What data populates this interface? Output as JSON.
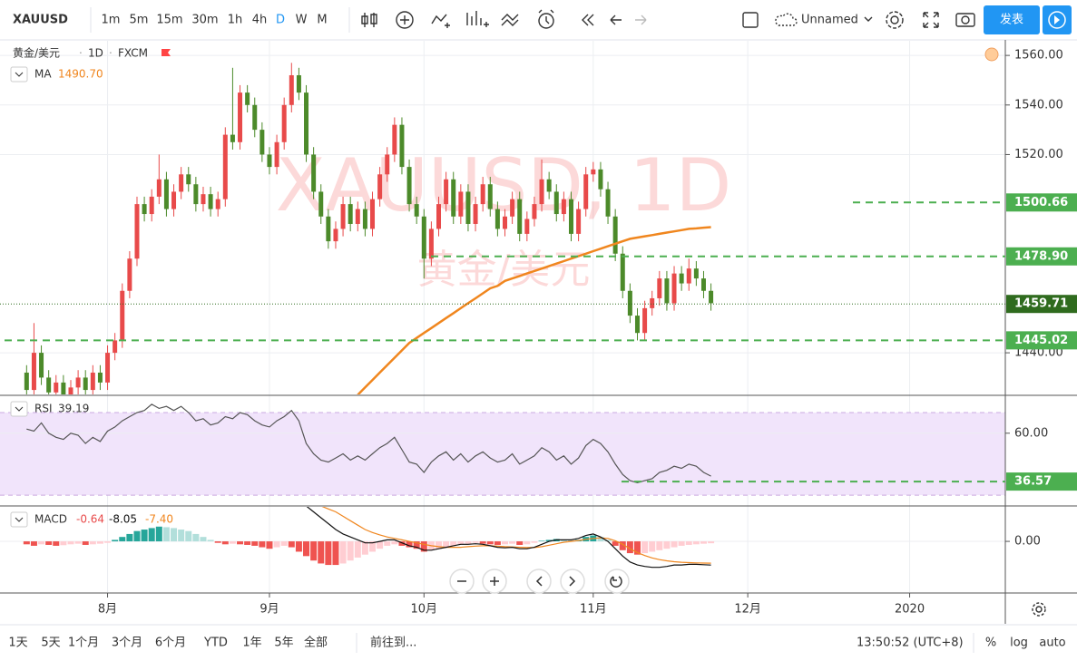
{
  "toolbar": {
    "symbol": "XAUUSD",
    "intervals": [
      "1m",
      "5m",
      "15m",
      "30m",
      "1h",
      "4h",
      "D",
      "W",
      "M"
    ],
    "active": "D",
    "layout_name": "Unnamed",
    "publish": "发表"
  },
  "chart_data": [
    {
      "type": "candlestick",
      "title": "黄金/美元",
      "interval": "1D",
      "source": "FXCM",
      "watermark": "XAUUSD, 1D",
      "watermark_sub": "黄金/美元",
      "up_color": "#e84a4a",
      "down_color": "#4c8a2a",
      "open": [
        1432,
        1425,
        1440,
        1430,
        1424,
        1428,
        1422,
        1426,
        1430,
        1425,
        1432,
        1428,
        1440,
        1445,
        1465,
        1478,
        1500,
        1496,
        1503,
        1510,
        1498,
        1505,
        1512,
        1508,
        1500,
        1504,
        1498,
        1502,
        1528,
        1525,
        1545,
        1540,
        1530,
        1520,
        1515,
        1525,
        1540,
        1552,
        1545,
        1520,
        1505,
        1495,
        1485,
        1490,
        1500,
        1492,
        1498,
        1490,
        1502,
        1512,
        1520,
        1532,
        1515,
        1500,
        1495,
        1478,
        1490,
        1500,
        1510,
        1495,
        1505,
        1492,
        1500,
        1508,
        1498,
        1490,
        1495,
        1502,
        1488,
        1494,
        1500,
        1510,
        1505,
        1496,
        1502,
        1488,
        1498,
        1512,
        1514,
        1506,
        1495,
        1480,
        1465,
        1455,
        1448,
        1458,
        1462,
        1470,
        1460,
        1472,
        1468,
        1474,
        1470,
        1465
      ],
      "high": [
        1435,
        1452,
        1443,
        1433,
        1431,
        1431,
        1429,
        1433,
        1433,
        1435,
        1435,
        1443,
        1448,
        1468,
        1481,
        1503,
        1503,
        1506,
        1520,
        1513,
        1508,
        1515,
        1515,
        1511,
        1507,
        1507,
        1505,
        1531,
        1555,
        1548,
        1548,
        1543,
        1533,
        1523,
        1528,
        1543,
        1557,
        1555,
        1548,
        1523,
        1508,
        1498,
        1493,
        1503,
        1503,
        1501,
        1501,
        1505,
        1515,
        1523,
        1535,
        1535,
        1518,
        1503,
        1498,
        1493,
        1503,
        1513,
        1513,
        1508,
        1508,
        1503,
        1511,
        1511,
        1501,
        1498,
        1505,
        1505,
        1497,
        1503,
        1518,
        1513,
        1508,
        1505,
        1505,
        1501,
        1515,
        1517,
        1517,
        1509,
        1498,
        1483,
        1468,
        1458,
        1461,
        1465,
        1473,
        1473,
        1475,
        1475,
        1478,
        1477,
        1473,
        1468
      ],
      "low": [
        1422,
        1422,
        1427,
        1421,
        1421,
        1419,
        1419,
        1423,
        1422,
        1422,
        1425,
        1425,
        1437,
        1442,
        1462,
        1475,
        1493,
        1493,
        1500,
        1495,
        1495,
        1502,
        1505,
        1497,
        1497,
        1495,
        1495,
        1499,
        1522,
        1522,
        1537,
        1527,
        1517,
        1512,
        1512,
        1522,
        1537,
        1542,
        1517,
        1502,
        1492,
        1482,
        1482,
        1487,
        1489,
        1489,
        1487,
        1487,
        1499,
        1509,
        1517,
        1512,
        1497,
        1492,
        1470,
        1475,
        1487,
        1497,
        1492,
        1492,
        1489,
        1489,
        1497,
        1495,
        1487,
        1487,
        1492,
        1485,
        1485,
        1491,
        1497,
        1502,
        1493,
        1493,
        1485,
        1485,
        1495,
        1509,
        1503,
        1492,
        1477,
        1462,
        1452,
        1445,
        1445,
        1455,
        1459,
        1457,
        1457,
        1465,
        1465,
        1467,
        1462,
        1457
      ],
      "close": [
        1425,
        1440,
        1430,
        1424,
        1428,
        1422,
        1426,
        1430,
        1425,
        1432,
        1428,
        1440,
        1445,
        1465,
        1478,
        1500,
        1496,
        1503,
        1510,
        1498,
        1505,
        1512,
        1508,
        1500,
        1504,
        1498,
        1502,
        1528,
        1525,
        1545,
        1540,
        1530,
        1520,
        1515,
        1525,
        1540,
        1552,
        1545,
        1520,
        1505,
        1495,
        1485,
        1490,
        1500,
        1492,
        1498,
        1490,
        1502,
        1512,
        1520,
        1532,
        1515,
        1500,
        1495,
        1478,
        1490,
        1500,
        1510,
        1495,
        1505,
        1492,
        1500,
        1508,
        1498,
        1490,
        1495,
        1502,
        1488,
        1494,
        1500,
        1510,
        1505,
        1496,
        1502,
        1488,
        1498,
        1512,
        1514,
        1506,
        1495,
        1480,
        1465,
        1455,
        1448,
        1458,
        1462,
        1470,
        1460,
        1472,
        1468,
        1474,
        1470,
        1465,
        1460
      ],
      "series": [
        {
          "name": "MA",
          "color": "#f0861e",
          "value_label": "1490.70",
          "values": [
            null,
            null,
            null,
            null,
            null,
            null,
            null,
            null,
            null,
            null,
            null,
            null,
            null,
            null,
            null,
            null,
            null,
            null,
            null,
            null,
            null,
            null,
            null,
            null,
            null,
            null,
            null,
            null,
            null,
            null,
            null,
            null,
            null,
            null,
            null,
            null,
            null,
            null,
            null,
            null,
            null,
            null,
            null,
            null,
            null,
            1423,
            1426,
            1429,
            1432,
            1435,
            1438,
            1441,
            1444,
            1446,
            1448,
            1450,
            1452,
            1454,
            1456,
            1458,
            1460,
            1462,
            1464,
            1466,
            1467,
            1469,
            1470,
            1471,
            1472,
            1473,
            1474,
            1475,
            1476,
            1477,
            1478,
            1479,
            1480,
            1481,
            1482,
            1483,
            1484,
            1485,
            1486,
            1486.5,
            1487,
            1487.5,
            1488,
            1488.5,
            1489,
            1489.5,
            1490,
            1490.2,
            1490.5,
            1490.7
          ]
        }
      ],
      "ylim": [
        1423.2,
        1565.9
      ],
      "yticks": [
        {
          "value": 1440,
          "label": "1440.00"
        },
        {
          "value": 1520,
          "label": "1520.00"
        },
        {
          "value": 1540,
          "label": "1540.00"
        },
        {
          "value": 1560,
          "label": "1560.00"
        }
      ],
      "xlim": [
        -3,
        133
      ],
      "xticks": [
        {
          "value": 11,
          "label": "8月"
        },
        {
          "value": 33,
          "label": "9月"
        },
        {
          "value": 54,
          "label": "10月"
        },
        {
          "value": 77,
          "label": "11月"
        },
        {
          "value": 98,
          "label": "12月"
        },
        {
          "value": 120,
          "label": "2020"
        }
      ],
      "levels": [
        {
          "value": 1500.66,
          "label": "1500.66"
        },
        {
          "value": 1478.9,
          "label": "1478.90"
        },
        {
          "value": 1445.02,
          "label": "1445.02"
        }
      ],
      "last": {
        "value": 1459.71,
        "label": "1459.71"
      },
      "level_color": "#4caf50",
      "last_color": "#2f6b1e"
    },
    {
      "type": "line",
      "title": "RSI",
      "value_label": "39.19",
      "series": [
        {
          "color": "#555555",
          "values": [
            62,
            61,
            65,
            60,
            58,
            57,
            60,
            59,
            55,
            58,
            56,
            61,
            63,
            66,
            68,
            70,
            71,
            74,
            72,
            73,
            71,
            73,
            70,
            66,
            67,
            64,
            65,
            68,
            67,
            70,
            69,
            66,
            64,
            63,
            66,
            68,
            71,
            66,
            55,
            50,
            47,
            46,
            48,
            50,
            47,
            49,
            47,
            50,
            53,
            55,
            58,
            52,
            46,
            45,
            41,
            46,
            49,
            51,
            47,
            50,
            46,
            49,
            51,
            48,
            46,
            47,
            50,
            45,
            47,
            49,
            53,
            51,
            47,
            49,
            45,
            48,
            54,
            57,
            55,
            51,
            45,
            40,
            37,
            36,
            37,
            38,
            41,
            42,
            44,
            43,
            45,
            44,
            41,
            39.19
          ]
        }
      ],
      "ylim": [
        25.2,
        77.9
      ],
      "yticks": [
        {
          "value": 60,
          "label": "60.00"
        }
      ],
      "band": [
        30,
        70
      ],
      "band_color": "#f1e4fb",
      "levels": [
        {
          "value": 36.57,
          "label": "36.57"
        }
      ],
      "level_color": "#4caf50"
    },
    {
      "type": "macd",
      "title": "MACD",
      "histogram": {
        "value_label": "-0.64",
        "colors": [
          "#26a69a",
          "#b2dfdb",
          "#ef5350",
          "#ffcdd2"
        ],
        "values": [
          -1,
          -1.5,
          -1,
          -1.2,
          -1.5,
          -1.3,
          -1,
          -0.8,
          -1.2,
          -1,
          -0.8,
          -0.5,
          0.5,
          1.5,
          2.5,
          3.5,
          4,
          4.5,
          5,
          4.8,
          4.5,
          4,
          3.5,
          2.5,
          1.5,
          0.5,
          -0.5,
          -1,
          -0.8,
          -1,
          -1.2,
          -1.5,
          -2,
          -2.5,
          -2,
          -1.5,
          -2,
          -3.5,
          -5,
          -6.5,
          -7.5,
          -8,
          -8,
          -7.5,
          -6.5,
          -5.5,
          -4.5,
          -3.5,
          -2.5,
          -1.5,
          -1,
          -1.5,
          -2,
          -2.5,
          -3.5,
          -3,
          -2.5,
          -2,
          -1.5,
          -1,
          -0.8,
          -0.5,
          -0.8,
          -1,
          -1.2,
          -1,
          -0.8,
          -1.2,
          -1,
          -0.5,
          0.2,
          0.5,
          0.8,
          0.5,
          0.3,
          0.5,
          1.5,
          2,
          1.5,
          0.5,
          -1.5,
          -3,
          -4,
          -4.5,
          -4,
          -3.5,
          -3,
          -2.5,
          -2,
          -1.5,
          -1.2,
          -1,
          -0.8,
          -0.64
        ]
      },
      "macd": {
        "value_label": "-8.05",
        "color": "#111111",
        "values": [
          null,
          null,
          null,
          null,
          null,
          null,
          null,
          null,
          null,
          null,
          null,
          null,
          null,
          null,
          null,
          null,
          null,
          null,
          null,
          null,
          null,
          null,
          null,
          null,
          null,
          null,
          null,
          null,
          null,
          null,
          null,
          null,
          null,
          null,
          null,
          null,
          null,
          null,
          12,
          10,
          8,
          6,
          4,
          2.5,
          1.5,
          0.5,
          -0.5,
          -0.5,
          0,
          0.5,
          0.5,
          -0.5,
          -1.5,
          -2,
          -3,
          -3,
          -2.5,
          -2,
          -1.5,
          -1,
          -1,
          -0.8,
          -1,
          -1.5,
          -2,
          -2.2,
          -2,
          -2.5,
          -2.5,
          -2,
          -1,
          0,
          0.5,
          0.5,
          0.5,
          1,
          2,
          2.5,
          1.5,
          0,
          -2.5,
          -5,
          -7,
          -8,
          -8.5,
          -8.8,
          -8.8,
          -8.5,
          -8,
          -8,
          -7.8,
          -7.8,
          -7.9,
          -8.05
        ]
      },
      "signal": {
        "value_label": "-7.40",
        "color": "#f0861e",
        "values": [
          null,
          null,
          null,
          null,
          null,
          null,
          null,
          null,
          null,
          null,
          null,
          null,
          null,
          null,
          null,
          null,
          null,
          null,
          null,
          null,
          null,
          null,
          null,
          null,
          null,
          null,
          null,
          null,
          null,
          null,
          null,
          null,
          null,
          null,
          null,
          null,
          null,
          null,
          13,
          12.5,
          12,
          11,
          10,
          8.5,
          7,
          5.5,
          4,
          3,
          2.2,
          1.5,
          1,
          0.5,
          0,
          -0.5,
          -1,
          -1.5,
          -1.8,
          -2,
          -2,
          -2,
          -1.8,
          -1.6,
          -1.5,
          -1.5,
          -1.6,
          -1.8,
          -1.9,
          -2,
          -2.1,
          -2.1,
          -1.8,
          -1.3,
          -0.8,
          -0.3,
          0,
          0.3,
          0.7,
          1,
          1.2,
          1,
          0.2,
          -1,
          -2.5,
          -3.8,
          -4.8,
          -5.6,
          -6.2,
          -6.6,
          -6.9,
          -7.1,
          -7.2,
          -7.3,
          -7.35,
          -7.4
        ]
      },
      "ylim": [
        -17.2,
        11.7
      ],
      "yticks": [
        {
          "value": 0,
          "label": "0.00"
        }
      ]
    }
  ],
  "bottom": {
    "ranges": [
      "1天",
      "5天",
      "1个月",
      "3个月",
      "6个月",
      "YTD",
      "1年",
      "5年",
      "全部"
    ],
    "goto": "前往到...",
    "time": "13:50:52 (UTC+8)",
    "scale": [
      "%",
      "log",
      "auto"
    ]
  }
}
